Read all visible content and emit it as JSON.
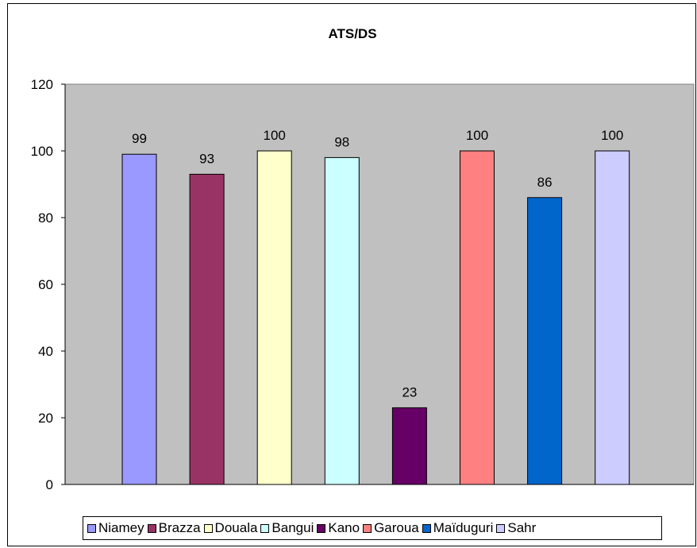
{
  "chart_data": {
    "type": "bar",
    "title": "ATS/DS",
    "categories": [
      "Niamey",
      "Brazza",
      "Douala",
      "Bangui",
      "Kano",
      "Garoua",
      "Maïduguri",
      "Sahr"
    ],
    "values": [
      99,
      93,
      100,
      98,
      23,
      100,
      86,
      100
    ],
    "data_labels": [
      "99",
      "93",
      "100",
      "98",
      "23",
      "100",
      "86",
      "100"
    ],
    "colors": [
      "#9999FF",
      "#993366",
      "#FFFFCC",
      "#CCFFFF",
      "#660066",
      "#FF8080",
      "#0066CC",
      "#CCCCFF"
    ],
    "ylim": [
      0,
      120
    ],
    "yticks": [
      "0",
      "20",
      "40",
      "60",
      "80",
      "100",
      "120"
    ],
    "xlabel": "",
    "ylabel": "",
    "plot_background": "#C0C0C0",
    "grid": false,
    "legend_position": "bottom"
  }
}
